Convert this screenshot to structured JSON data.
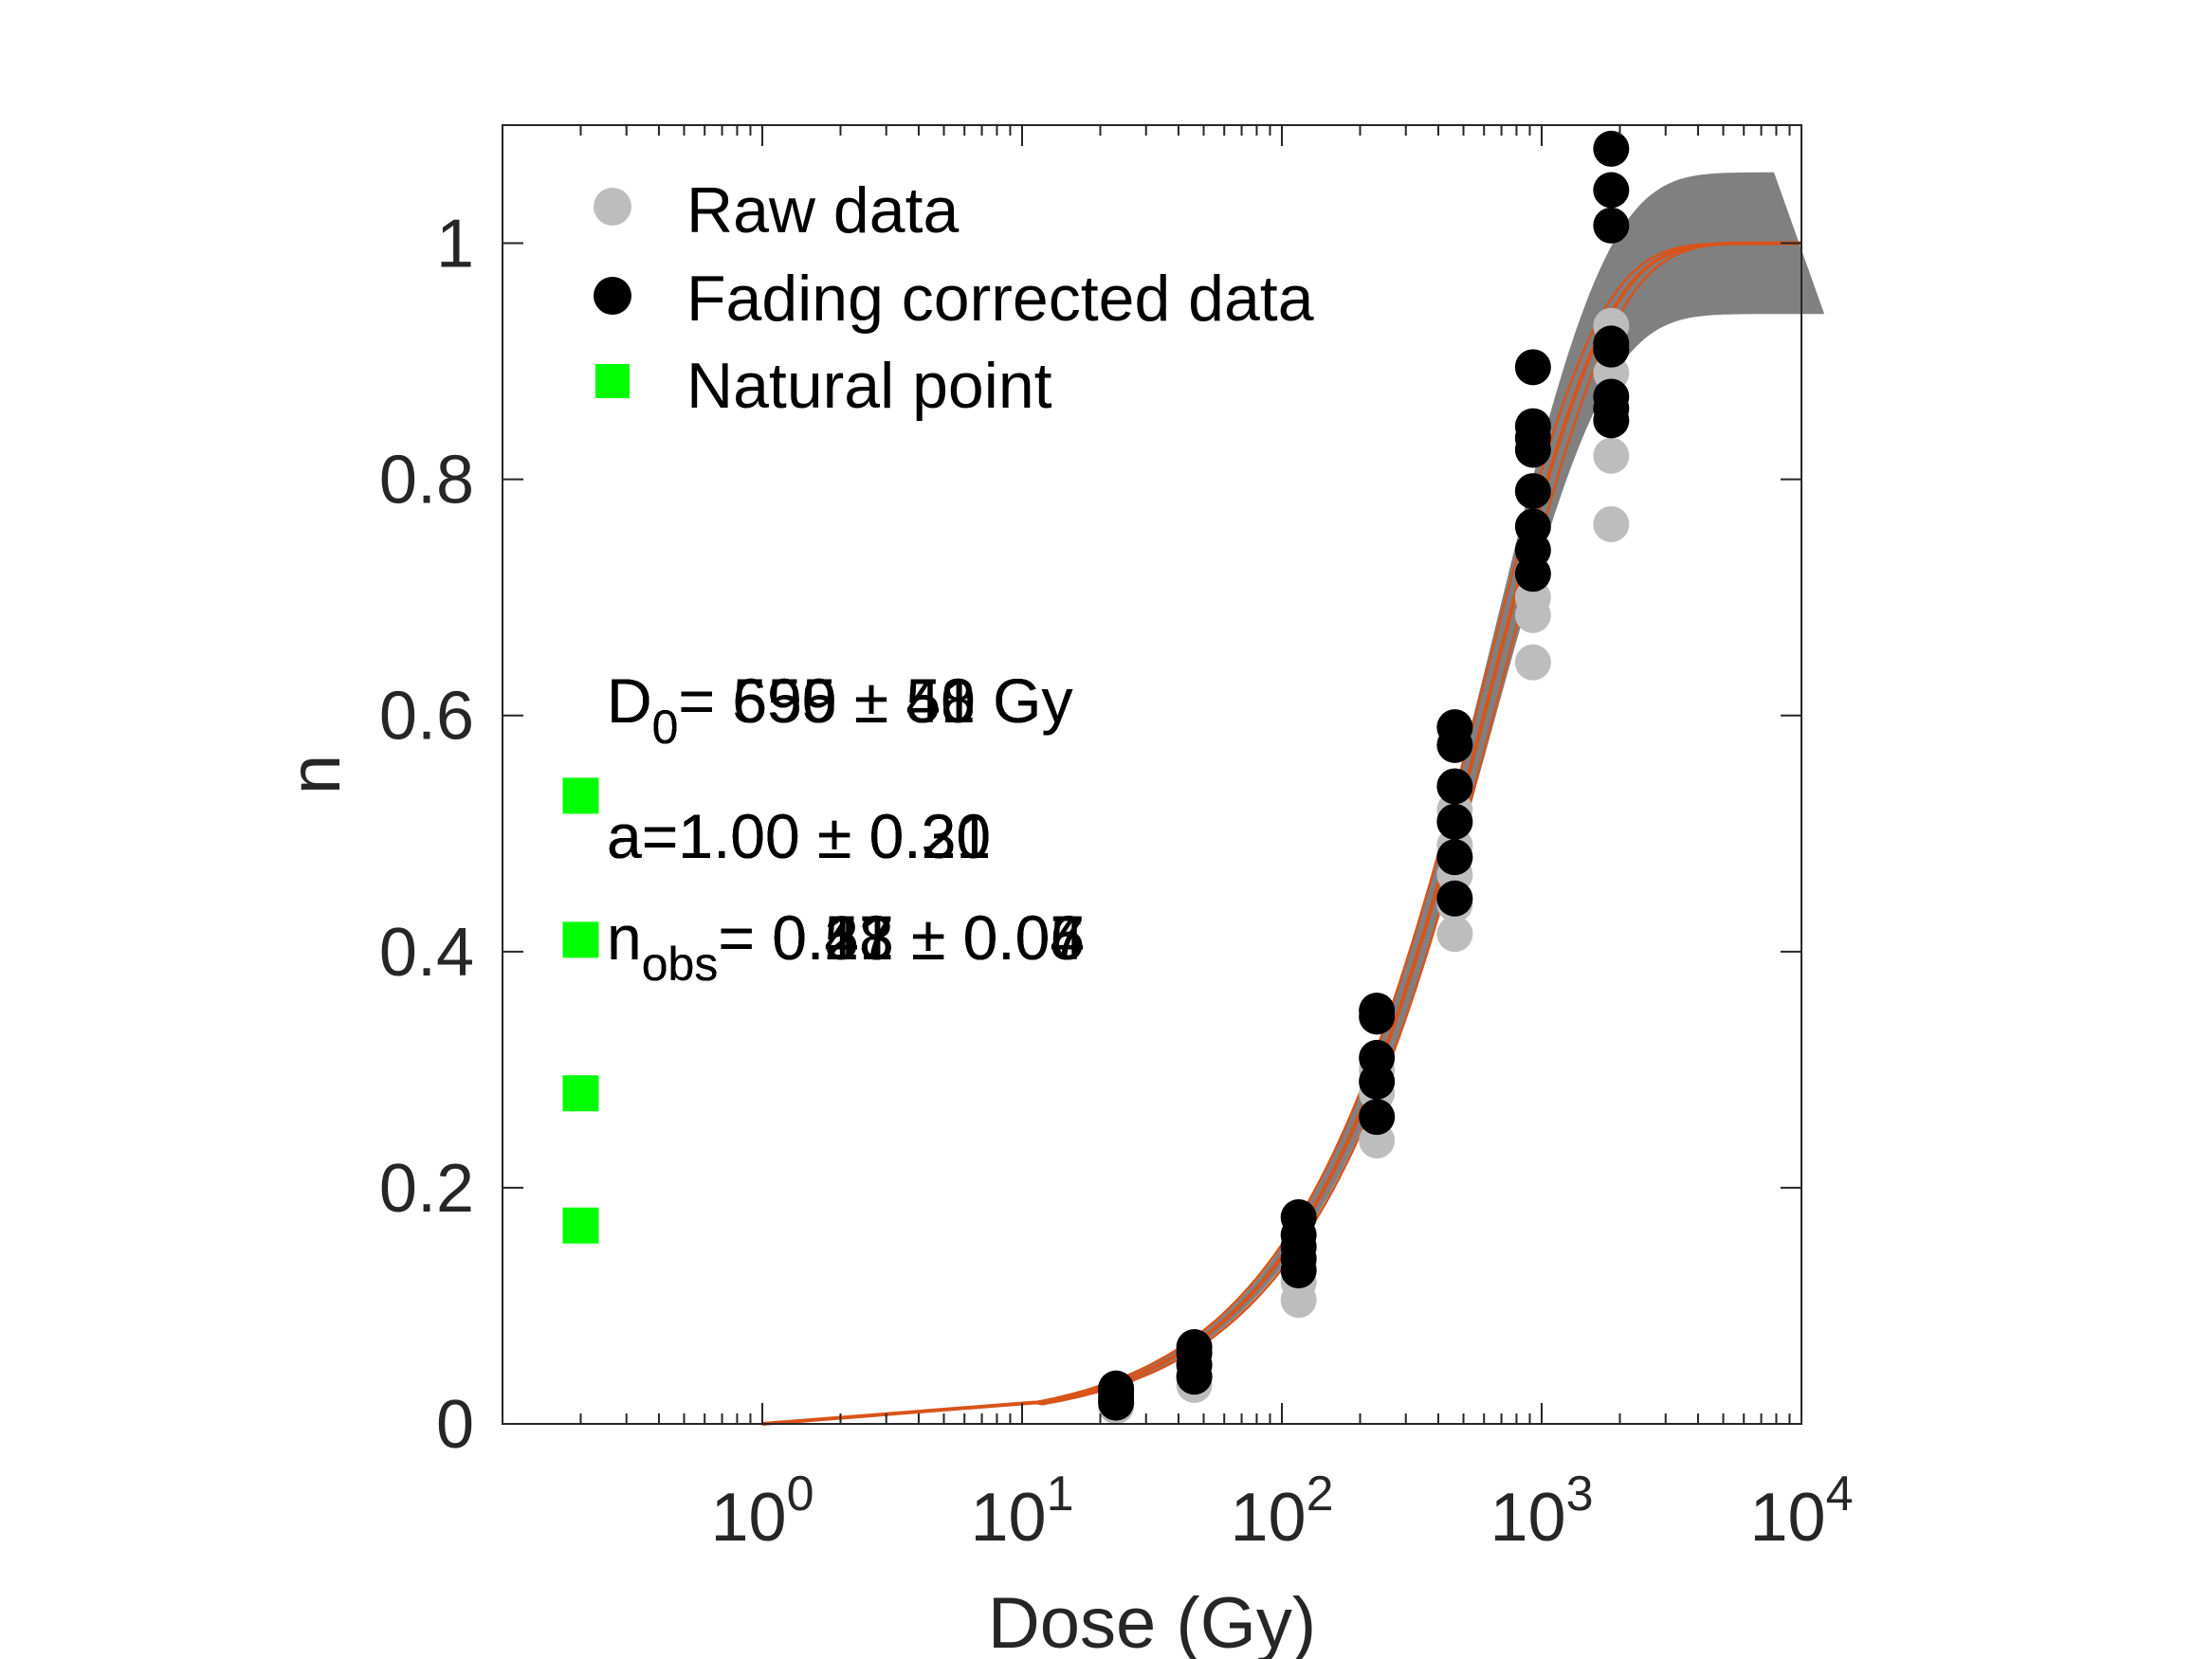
{
  "chart_data": {
    "type": "scatter",
    "xlabel": "Dose (Gy)",
    "ylabel": "n",
    "xscale": "log",
    "xlim": [
      0.1,
      10000
    ],
    "ylim": [
      0,
      1.1
    ],
    "x_ticks": [
      {
        "value": 1,
        "base": "10",
        "exp": "0"
      },
      {
        "value": 10,
        "base": "10",
        "exp": "1"
      },
      {
        "value": 100,
        "base": "10",
        "exp": "2"
      },
      {
        "value": 1000,
        "base": "10",
        "exp": "3"
      },
      {
        "value": 10000,
        "base": "10",
        "exp": "4"
      }
    ],
    "y_ticks": [
      {
        "value": 0,
        "label": "0"
      },
      {
        "value": 0.2,
        "label": "0.2"
      },
      {
        "value": 0.4,
        "label": "0.4"
      },
      {
        "value": 0.6,
        "label": "0.6"
      },
      {
        "value": 0.8,
        "label": "0.8"
      },
      {
        "value": 1,
        "label": "1"
      }
    ],
    "legend": {
      "position": "top-left",
      "entries": [
        {
          "label": "Raw data",
          "marker": "circle",
          "color": "#bdbdbd"
        },
        {
          "label": "Fading corrected data",
          "marker": "circle",
          "color": "#000000"
        },
        {
          "label": "Natural point",
          "marker": "square",
          "color": "#00ff00"
        }
      ]
    },
    "annotations": {
      "d0": {
        "prefix": "D",
        "sub": "0",
        "texts": [
          "= 690 ± 51 Gy",
          "= 599 ± 48 Gy",
          "= 655 ± 50 Gy",
          "= 699 ± 51 Gy"
        ]
      },
      "a": {
        "texts": [
          "a=1.00 ± 0.20",
          "a=1.00 ± 0.21",
          "a=1.00 ± 0.30",
          "a=1.00 ± 0.31"
        ]
      },
      "nobs": {
        "prefix": "n",
        "sub": "obs",
        "texts": [
          "= 0.53 ± 0.04",
          "= 0.41 ± 0.05",
          "= 0.28 ± 0.06",
          "= 0.17 ± 0.07"
        ]
      }
    },
    "fit": {
      "model": "1 - exp(-D/D0)",
      "d0": 655,
      "band_upper": 1.06,
      "band_lower": 0.94,
      "color": "#d95319",
      "band_color": "#808080"
    },
    "series": [
      {
        "name": "Raw data",
        "color": "#bdbdbd",
        "points": [
          [
            23,
            0.015
          ],
          [
            23,
            0.02
          ],
          [
            23,
            0.025
          ],
          [
            46,
            0.033
          ],
          [
            46,
            0.04
          ],
          [
            46,
            0.05
          ],
          [
            116,
            0.105
          ],
          [
            116,
            0.12
          ],
          [
            116,
            0.135
          ],
          [
            116,
            0.15
          ],
          [
            232,
            0.24
          ],
          [
            232,
            0.26
          ],
          [
            232,
            0.28
          ],
          [
            232,
            0.3
          ],
          [
            463,
            0.415
          ],
          [
            463,
            0.44
          ],
          [
            463,
            0.465
          ],
          [
            463,
            0.49
          ],
          [
            463,
            0.52
          ],
          [
            926,
            0.645
          ],
          [
            926,
            0.685
          ],
          [
            926,
            0.7
          ],
          [
            926,
            0.72
          ],
          [
            1852,
            0.762
          ],
          [
            1852,
            0.82
          ],
          [
            1852,
            0.85
          ],
          [
            1852,
            0.89
          ],
          [
            1852,
            0.93
          ]
        ]
      },
      {
        "name": "Fading corrected data",
        "color": "#000000",
        "points": [
          [
            23,
            0.018
          ],
          [
            23,
            0.022
          ],
          [
            23,
            0.027
          ],
          [
            23,
            0.03
          ],
          [
            46,
            0.04
          ],
          [
            46,
            0.05
          ],
          [
            46,
            0.06
          ],
          [
            46,
            0.065
          ],
          [
            116,
            0.13
          ],
          [
            116,
            0.14
          ],
          [
            116,
            0.15
          ],
          [
            116,
            0.16
          ],
          [
            116,
            0.175
          ],
          [
            232,
            0.26
          ],
          [
            232,
            0.29
          ],
          [
            232,
            0.31
          ],
          [
            232,
            0.345
          ],
          [
            232,
            0.35
          ],
          [
            463,
            0.445
          ],
          [
            463,
            0.48
          ],
          [
            463,
            0.51
          ],
          [
            463,
            0.54
          ],
          [
            463,
            0.575
          ],
          [
            463,
            0.59
          ],
          [
            926,
            0.72
          ],
          [
            926,
            0.74
          ],
          [
            926,
            0.76
          ],
          [
            926,
            0.79
          ],
          [
            926,
            0.825
          ],
          [
            926,
            0.835
          ],
          [
            926,
            0.845
          ],
          [
            926,
            0.895
          ],
          [
            1852,
            0.85
          ],
          [
            1852,
            0.86
          ],
          [
            1852,
            0.87
          ],
          [
            1852,
            0.91
          ],
          [
            1852,
            0.915
          ],
          [
            1852,
            1.015
          ],
          [
            1852,
            1.045
          ],
          [
            1852,
            1.08
          ]
        ]
      },
      {
        "name": "Natural point",
        "color": "#00ff00",
        "points": [
          [
            0.2,
            0.532
          ],
          [
            0.2,
            0.41
          ],
          [
            0.2,
            0.28
          ],
          [
            0.2,
            0.168
          ]
        ]
      }
    ]
  }
}
